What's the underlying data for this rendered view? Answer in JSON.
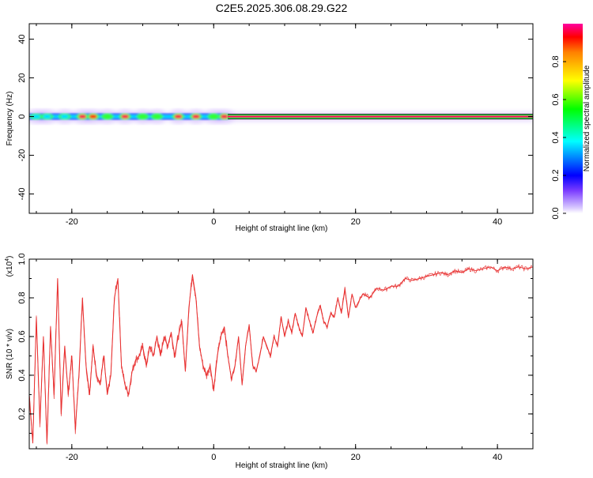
{
  "title": "C2E5.2025.306.08.29.G22",
  "chart_data": [
    {
      "type": "heatmap",
      "name": "spectrogram",
      "xlabel": "Height of straight line (km)",
      "ylabel": "Frequency (Hz)",
      "xlim": [
        -26,
        45
      ],
      "ylim": [
        -50,
        48
      ],
      "xticks": [
        -20,
        0,
        20,
        40
      ],
      "yticks": [
        -40,
        -20,
        0,
        20,
        40
      ],
      "colorbar": {
        "label": "Normalized spectral amplitude",
        "range": [
          0,
          1
        ],
        "ticks": [
          0.0,
          0.2,
          0.4,
          0.6,
          0.8
        ],
        "tick_labels": [
          "0.0",
          "0.2",
          "0.4",
          "0.6",
          "0.8"
        ]
      },
      "band_center_hz": 0,
      "hotspots": [
        {
          "x": -25,
          "amp": 0.45
        },
        {
          "x": -23.5,
          "amp": 0.4
        },
        {
          "x": -21,
          "amp": 0.5
        },
        {
          "x": -18.5,
          "amp": 0.95
        },
        {
          "x": -17,
          "amp": 0.85
        },
        {
          "x": -15,
          "amp": 0.6
        },
        {
          "x": -12.5,
          "amp": 0.98
        },
        {
          "x": -10,
          "amp": 0.55
        },
        {
          "x": -8,
          "amp": 0.6
        },
        {
          "x": -5,
          "amp": 0.95
        },
        {
          "x": -2.5,
          "amp": 0.97
        },
        {
          "x": 0,
          "amp": 0.6
        },
        {
          "x": 1.5,
          "amp": 0.95
        }
      ],
      "continuous_band": {
        "x_start": 2,
        "x_end": 45,
        "amp": 0.95
      }
    },
    {
      "type": "line",
      "name": "snr",
      "xlabel": "Height of straight line (km)",
      "ylabel": "SNR (10 * v/v)",
      "y_multiplier_label": "(x10",
      "y_multiplier_exp": "4",
      "y_multiplier_close": ")",
      "xlim": [
        -26,
        45
      ],
      "ylim": [
        0.02,
        1.0
      ],
      "xticks": [
        -20,
        0,
        20,
        40
      ],
      "yticks": [
        0.2,
        0.4,
        0.6,
        0.8,
        1.0
      ],
      "ytick_labels": [
        "0.2",
        "0.4",
        "0.6",
        "0.8",
        "1.0"
      ],
      "line_color": "#e83030",
      "series": [
        {
          "name": "SNR",
          "x": [
            -26,
            -25.5,
            -25,
            -24.5,
            -24,
            -23.5,
            -23,
            -22.5,
            -22,
            -21.5,
            -21,
            -20.5,
            -20,
            -19.5,
            -19,
            -18.5,
            -18,
            -17.5,
            -17,
            -16.5,
            -16,
            -15.5,
            -15,
            -14.5,
            -14,
            -13.5,
            -13,
            -12.5,
            -12,
            -11.5,
            -11,
            -10.5,
            -10,
            -9.5,
            -9,
            -8.5,
            -8,
            -7.5,
            -7,
            -6.5,
            -6,
            -5.5,
            -5,
            -4.5,
            -4,
            -3.5,
            -3,
            -2.5,
            -2,
            -1.5,
            -1,
            -0.5,
            0,
            0.5,
            1,
            1.5,
            2,
            2.5,
            3,
            3.5,
            4,
            4.5,
            5,
            5.5,
            6,
            6.5,
            7,
            7.5,
            8,
            8.5,
            9,
            9.5,
            10,
            10.5,
            11,
            11.5,
            12,
            12.5,
            13,
            13.5,
            14,
            14.5,
            15,
            15.5,
            16,
            16.5,
            17,
            17.5,
            18,
            18.5,
            19,
            19.5,
            20,
            21,
            22,
            23,
            24,
            25,
            26,
            27,
            28,
            29,
            30,
            31,
            32,
            33,
            34,
            35,
            36,
            37,
            38,
            39,
            40,
            41,
            42,
            43,
            44,
            45
          ],
          "y": [
            0.3,
            0.05,
            0.7,
            0.15,
            0.6,
            0.05,
            0.65,
            0.3,
            0.9,
            0.2,
            0.55,
            0.3,
            0.5,
            0.12,
            0.4,
            0.8,
            0.45,
            0.3,
            0.55,
            0.4,
            0.35,
            0.5,
            0.3,
            0.4,
            0.8,
            0.9,
            0.45,
            0.35,
            0.3,
            0.42,
            0.48,
            0.5,
            0.55,
            0.45,
            0.55,
            0.5,
            0.6,
            0.5,
            0.6,
            0.55,
            0.62,
            0.5,
            0.6,
            0.68,
            0.42,
            0.75,
            0.92,
            0.8,
            0.55,
            0.45,
            0.4,
            0.45,
            0.32,
            0.5,
            0.6,
            0.65,
            0.5,
            0.38,
            0.45,
            0.6,
            0.35,
            0.55,
            0.66,
            0.45,
            0.42,
            0.5,
            0.6,
            0.55,
            0.5,
            0.6,
            0.55,
            0.7,
            0.6,
            0.68,
            0.62,
            0.72,
            0.65,
            0.6,
            0.75,
            0.68,
            0.62,
            0.7,
            0.76,
            0.68,
            0.65,
            0.72,
            0.7,
            0.8,
            0.72,
            0.85,
            0.7,
            0.82,
            0.75,
            0.82,
            0.8,
            0.85,
            0.84,
            0.86,
            0.86,
            0.9,
            0.89,
            0.9,
            0.91,
            0.92,
            0.93,
            0.92,
            0.94,
            0.93,
            0.95,
            0.94,
            0.95,
            0.96,
            0.94,
            0.96,
            0.95,
            0.96,
            0.95,
            0.96
          ]
        }
      ]
    }
  ]
}
